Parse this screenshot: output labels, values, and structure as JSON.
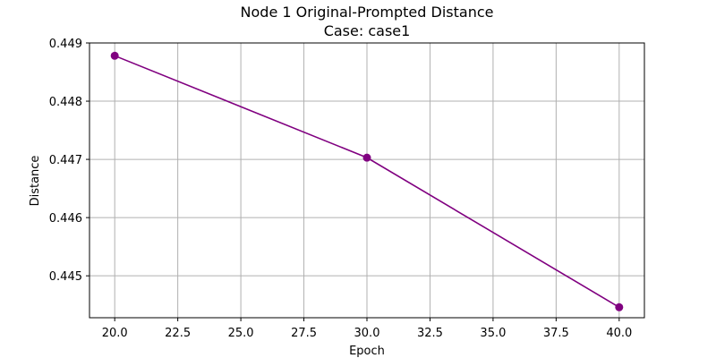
{
  "chart_data": {
    "type": "line",
    "title": "Node 1 Original-Prompted Distance",
    "subtitle": "Case: case1",
    "xlabel": "Epoch",
    "ylabel": "Distance",
    "xlim": [
      19.0,
      41.0
    ],
    "ylim": [
      0.44428,
      0.449
    ],
    "xticks": [
      20.0,
      22.5,
      25.0,
      27.5,
      30.0,
      32.5,
      35.0,
      37.5,
      40.0
    ],
    "xtick_labels": [
      "20.0",
      "22.5",
      "25.0",
      "27.5",
      "30.0",
      "32.5",
      "35.0",
      "37.5",
      "40.0"
    ],
    "yticks": [
      0.445,
      0.446,
      0.447,
      0.448,
      0.449
    ],
    "ytick_labels": [
      "0.445",
      "0.446",
      "0.447",
      "0.448",
      "0.449"
    ],
    "grid": true,
    "series": [
      {
        "color": "#800080",
        "marker": "circle",
        "x": [
          20,
          30,
          40
        ],
        "y": [
          0.44878,
          0.44703,
          0.44446
        ]
      }
    ]
  }
}
